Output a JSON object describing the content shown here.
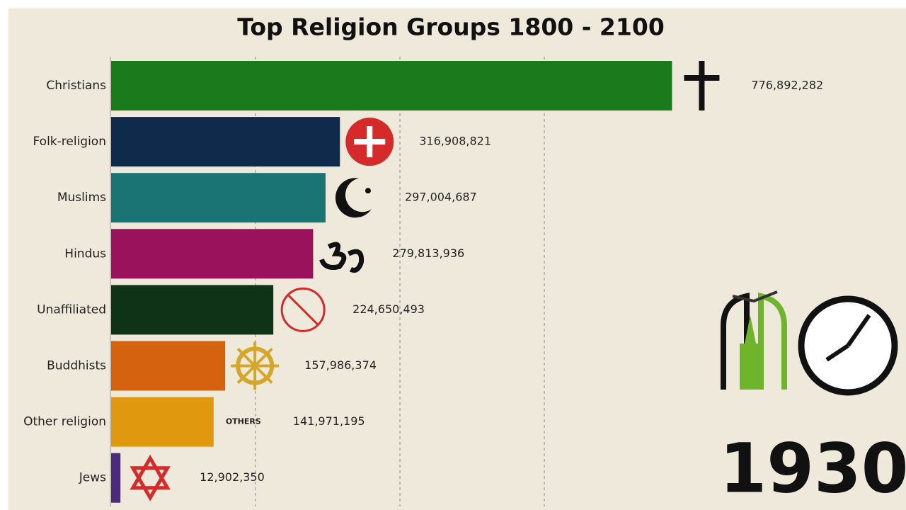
{
  "chart_data": {
    "type": "bar",
    "orientation": "horizontal",
    "title": "Top Religion Groups 1800 - 2100",
    "categories": [
      "Christians",
      "Folk-religion",
      "Muslims",
      "Hindus",
      "Unaffiliated",
      "Buddhists",
      "Other religion",
      "Jews"
    ],
    "values": [
      776892282,
      316908821,
      297004687,
      279813936,
      224650493,
      157986374,
      141971195,
      12902350
    ],
    "value_labels": [
      "776,892,282",
      "316,908,821",
      "297,004,687",
      "279,813,936",
      "224,650,493",
      "157,986,374",
      "141,971,195",
      "12,902,350"
    ],
    "colors": [
      "#1b7b1c",
      "#0f2a4b",
      "#1a7474",
      "#9a115c",
      "#0e3316",
      "#d5620f",
      "#e0990f",
      "#4b2a7c"
    ],
    "xlim": [
      0,
      1100000000
    ],
    "xticks": [
      200000000,
      400000000,
      600000000
    ],
    "grid": true,
    "others_label": "OTHERS",
    "year": "1930"
  }
}
